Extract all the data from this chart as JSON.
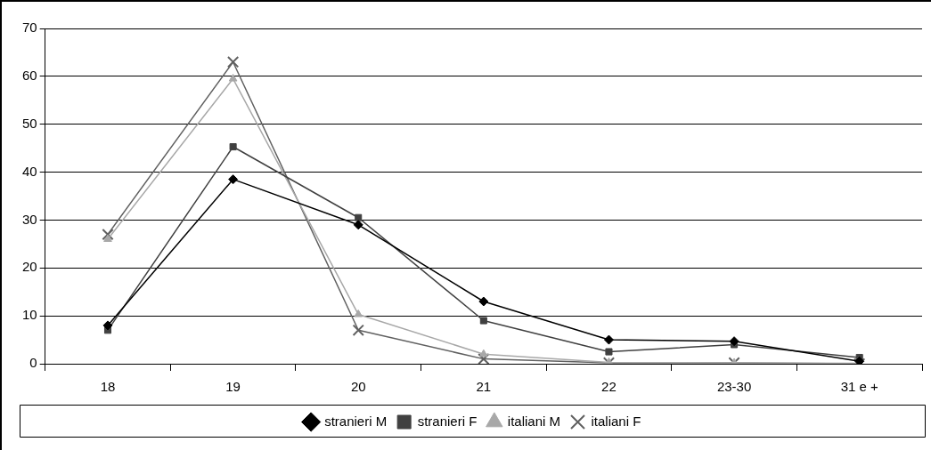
{
  "chart_data": {
    "type": "line",
    "categories": [
      "18",
      "19",
      "20",
      "21",
      "22",
      "23-30",
      "31 e +"
    ],
    "series": [
      {
        "name": "stranieri M",
        "color": "#000000",
        "marker": "diamond",
        "values": [
          8,
          38.5,
          29,
          13,
          5,
          4.7,
          0.5
        ]
      },
      {
        "name": "stranieri F",
        "color": "#404040",
        "marker": "square",
        "values": [
          7,
          45.3,
          30.5,
          9,
          2.5,
          4,
          1.3
        ]
      },
      {
        "name": "italiani M",
        "color": "#a8a8a8",
        "marker": "triangle",
        "values": [
          26,
          59.5,
          10.3,
          2,
          0.3,
          0.2,
          0.1
        ]
      },
      {
        "name": "italiani F",
        "color": "#606060",
        "marker": "cross",
        "values": [
          27,
          63,
          7,
          1,
          0.2,
          0.2,
          0
        ]
      }
    ],
    "ylim": [
      0,
      70
    ],
    "yticks": [
      0,
      10,
      20,
      30,
      40,
      50,
      60,
      70
    ],
    "grid": "y",
    "legend": "bottom",
    "line_style": "solid"
  }
}
